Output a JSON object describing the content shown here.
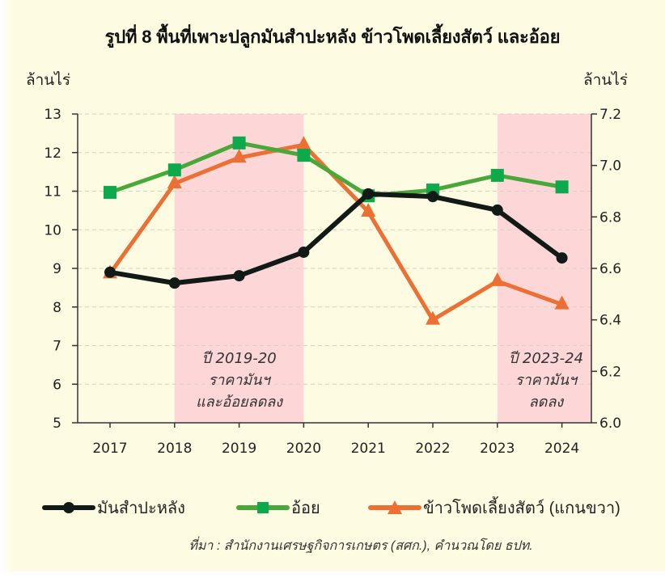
{
  "title": "รูปที่ 8 พื้นที่เพาะปลูกมันสำปะหลัง ข้าวโพดเลี้ยงสัตว์ และอ้อย",
  "axes": {
    "left_unit": "ล้านไร่",
    "right_unit": "ล้านไร่"
  },
  "source": "ที่มา : สำนักงานเศรษฐกิจการเกษตร (สศก.), คำนวณโดย ธปท.",
  "colors": {
    "background": "#fdfbe1",
    "shade": "#fdd6d8",
    "cassava": "#111a17",
    "sugarcane_line": "#4aa83a",
    "sugarcane_marker": "#0daa4b",
    "corn": "#ec6f33",
    "axis": "#333333",
    "grid": "#d6d2c0"
  },
  "legend": [
    {
      "key": "cassava",
      "label": "มันสำปะหลัง",
      "marker": "circle"
    },
    {
      "key": "sugarcane",
      "label": "อ้อย",
      "marker": "square"
    },
    {
      "key": "corn",
      "label": "ข้าวโพดเลี้ยงสัตว์ (แกนขวา)",
      "marker": "triangle"
    }
  ],
  "chart_data": {
    "type": "line",
    "title": "รูปที่ 8 พื้นที่เพาะปลูกมันสำปะหลัง ข้าวโพดเลี้ยงสัตว์ และอ้อย",
    "xlabel": "",
    "ylabel": "ล้านไร่",
    "ylabel_right": "ล้านไร่",
    "categories": [
      "2017",
      "2018",
      "2019",
      "2020",
      "2021",
      "2022",
      "2023",
      "2024"
    ],
    "ylim": [
      5,
      13
    ],
    "yticks": [
      5,
      6,
      7,
      8,
      9,
      10,
      11,
      12,
      13
    ],
    "ylim_right": [
      6.0,
      7.2
    ],
    "yticks_right": [
      "6.0",
      "6.2",
      "6.4",
      "6.6",
      "6.8",
      "7.0",
      "7.2"
    ],
    "grid": true,
    "legend_position": "bottom",
    "series": [
      {
        "name": "มันสำปะหลัง",
        "axis": "left",
        "marker": "circle",
        "values": [
          8.9,
          8.62,
          8.81,
          9.42,
          10.93,
          10.86,
          10.51,
          9.27
        ]
      },
      {
        "name": "อ้อย",
        "axis": "left",
        "marker": "square",
        "values": [
          10.97,
          11.55,
          12.25,
          11.93,
          10.88,
          11.03,
          11.41,
          11.11
        ]
      },
      {
        "name": "ข้าวโพดเลี้ยงสัตว์ (แกนขวา)",
        "axis": "right",
        "marker": "triangle",
        "values": [
          6.58,
          6.93,
          7.03,
          7.08,
          6.82,
          6.4,
          6.55,
          6.46
        ]
      }
    ],
    "annotations": [
      {
        "from": "2018",
        "to": "2020",
        "lines": [
          "ปี 2019-20",
          "ราคามันฯ",
          "และอ้อยลดลง"
        ]
      },
      {
        "from": "2023",
        "to": "axis_end",
        "lines": [
          "ปี 2023-24",
          "ราคามันฯ",
          "ลดลง"
        ]
      }
    ]
  }
}
